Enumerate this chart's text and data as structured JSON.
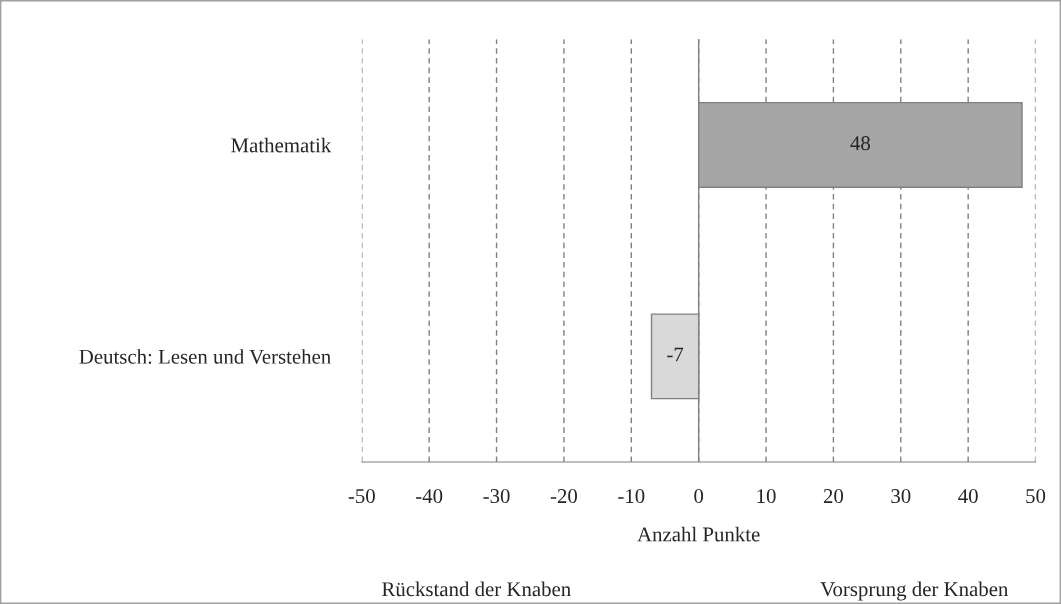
{
  "chart_data": {
    "type": "bar",
    "orientation": "horizontal",
    "categories": [
      "Mathematik",
      "Deutsch: Lesen und Verstehen"
    ],
    "values": [
      48,
      -7
    ],
    "colors": [
      "#a6a6a6",
      "#d9d9d9"
    ],
    "xlim": [
      -50,
      50
    ],
    "xticks": [
      -50,
      -40,
      -30,
      -20,
      -10,
      0,
      10,
      20,
      30,
      40,
      50
    ],
    "xlabel": "Anzahl Punkte",
    "annotations": [
      "Rückstand der Knaben",
      "Vorsprung der Knaben"
    ],
    "grid": "x",
    "data_labels": true,
    "legend": false
  }
}
